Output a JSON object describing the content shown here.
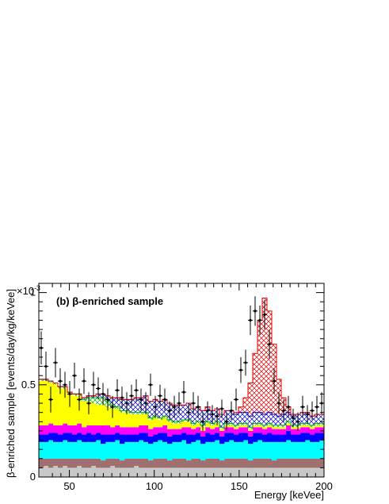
{
  "chart_data": {
    "type": "histogram",
    "panel_label": "(b) β-enriched sample",
    "xlabel": "Energy [keVee]",
    "ylabel": "β-enriched sample [events/day/kg/keVee]",
    "y_multiplier": "×10",
    "y_multiplier_exp": "-3",
    "xlim": [
      32,
      200
    ],
    "ylim": [
      0,
      1.05
    ],
    "x_ticks": [
      50,
      100,
      150,
      200
    ],
    "y_ticks": [
      0,
      0.5,
      1
    ],
    "y_tick_labels": [
      "0",
      "0.5",
      "1"
    ],
    "bins": [
      32.0,
      34.8,
      37.6,
      40.4,
      43.2,
      46.0,
      48.8,
      51.6,
      54.4,
      57.2,
      60.0,
      62.8,
      65.6,
      68.4,
      71.2,
      74.0,
      76.8,
      79.6,
      82.4,
      85.2,
      88.0,
      90.8,
      93.6,
      96.4,
      99.2,
      102.0,
      104.8,
      107.6,
      110.4,
      113.2,
      116.0,
      118.8,
      121.6,
      124.4,
      127.2,
      130.0,
      132.8,
      135.6,
      138.4,
      141.2,
      144.0,
      146.8,
      149.6,
      152.4,
      155.2,
      158.0,
      160.8,
      163.6,
      166.4,
      169.2,
      172.0,
      174.8,
      177.6,
      180.4,
      183.2,
      186.0,
      188.8,
      191.6,
      194.4,
      197.2,
      200.0
    ],
    "stack": [
      {
        "color": "#c8c8c8",
        "values": [
          0.05,
          0.06,
          0.05,
          0.06,
          0.05,
          0.06,
          0.05,
          0.05,
          0.06,
          0.05,
          0.05,
          0.06,
          0.05,
          0.05,
          0.05,
          0.06,
          0.05,
          0.05,
          0.05,
          0.05,
          0.06,
          0.05,
          0.05,
          0.05,
          0.05,
          0.05,
          0.05,
          0.05,
          0.05,
          0.05,
          0.05,
          0.05,
          0.05,
          0.05,
          0.05,
          0.05,
          0.05,
          0.05,
          0.05,
          0.05,
          0.05,
          0.05,
          0.05,
          0.05,
          0.05,
          0.05,
          0.05,
          0.05,
          0.05,
          0.05,
          0.05,
          0.05,
          0.05,
          0.05,
          0.05,
          0.05,
          0.05,
          0.05,
          0.05,
          0.05
        ]
      },
      {
        "color": "#a07070",
        "values": [
          0.05,
          0.04,
          0.05,
          0.04,
          0.05,
          0.04,
          0.05,
          0.05,
          0.04,
          0.05,
          0.05,
          0.04,
          0.05,
          0.04,
          0.05,
          0.04,
          0.05,
          0.04,
          0.05,
          0.05,
          0.04,
          0.05,
          0.05,
          0.04,
          0.05,
          0.05,
          0.05,
          0.04,
          0.05,
          0.05,
          0.05,
          0.04,
          0.05,
          0.05,
          0.04,
          0.05,
          0.05,
          0.05,
          0.04,
          0.05,
          0.05,
          0.05,
          0.05,
          0.05,
          0.04,
          0.05,
          0.05,
          0.05,
          0.05,
          0.04,
          0.05,
          0.05,
          0.05,
          0.05,
          0.05,
          0.05,
          0.05,
          0.05,
          0.05,
          0.05
        ]
      },
      {
        "color": "#00ffff",
        "values": [
          0.09,
          0.09,
          0.1,
          0.09,
          0.09,
          0.1,
          0.09,
          0.09,
          0.1,
          0.09,
          0.09,
          0.09,
          0.1,
          0.09,
          0.09,
          0.09,
          0.1,
          0.09,
          0.09,
          0.09,
          0.09,
          0.1,
          0.09,
          0.09,
          0.09,
          0.1,
          0.09,
          0.09,
          0.09,
          0.09,
          0.1,
          0.09,
          0.09,
          0.1,
          0.09,
          0.09,
          0.09,
          0.1,
          0.09,
          0.09,
          0.1,
          0.09,
          0.09,
          0.1,
          0.09,
          0.09,
          0.1,
          0.09,
          0.09,
          0.1,
          0.09,
          0.09,
          0.1,
          0.09,
          0.09,
          0.09,
          0.1,
          0.09,
          0.09,
          0.1
        ]
      },
      {
        "color": "#0000ff",
        "values": [
          0.04,
          0.04,
          0.04,
          0.05,
          0.04,
          0.04,
          0.05,
          0.04,
          0.04,
          0.04,
          0.05,
          0.04,
          0.04,
          0.05,
          0.04,
          0.04,
          0.04,
          0.05,
          0.04,
          0.04,
          0.04,
          0.04,
          0.05,
          0.04,
          0.04,
          0.04,
          0.05,
          0.04,
          0.04,
          0.04,
          0.04,
          0.05,
          0.04,
          0.04,
          0.04,
          0.05,
          0.04,
          0.04,
          0.04,
          0.05,
          0.04,
          0.04,
          0.05,
          0.04,
          0.04,
          0.05,
          0.04,
          0.04,
          0.05,
          0.04,
          0.04,
          0.04,
          0.05,
          0.04,
          0.04,
          0.05,
          0.04,
          0.04,
          0.05,
          0.04
        ]
      },
      {
        "color": "#ff00ff",
        "values": [
          0.05,
          0.05,
          0.05,
          0.04,
          0.05,
          0.05,
          0.04,
          0.05,
          0.05,
          0.04,
          0.04,
          0.05,
          0.04,
          0.05,
          0.05,
          0.04,
          0.04,
          0.04,
          0.04,
          0.04,
          0.04,
          0.04,
          0.04,
          0.04,
          0.04,
          0.03,
          0.04,
          0.04,
          0.03,
          0.03,
          0.03,
          0.04,
          0.03,
          0.03,
          0.03,
          0.03,
          0.03,
          0.03,
          0.03,
          0.03,
          0.03,
          0.03,
          0.03,
          0.03,
          0.03,
          0.03,
          0.03,
          0.03,
          0.03,
          0.03,
          0.03,
          0.03,
          0.03,
          0.03,
          0.03,
          0.03,
          0.03,
          0.03,
          0.03,
          0.03
        ]
      },
      {
        "color": "#ffff00",
        "values": [
          0.24,
          0.24,
          0.22,
          0.22,
          0.2,
          0.19,
          0.17,
          0.16,
          0.15,
          0.14,
          0.13,
          0.12,
          0.11,
          0.11,
          0.1,
          0.1,
          0.09,
          0.08,
          0.08,
          0.07,
          0.07,
          0.06,
          0.06,
          0.05,
          0.05,
          0.04,
          0.04,
          0.04,
          0.03,
          0.03,
          0.03,
          0.03,
          0.02,
          0.02,
          0.02,
          0.02,
          0.02,
          0.02,
          0.01,
          0.01,
          0.01,
          0.01,
          0.01,
          0.01,
          0.01,
          0.01,
          0.01,
          0.01,
          0.01,
          0.01,
          0.01,
          0.01,
          0.01,
          0.01,
          0.01,
          0.01,
          0.01,
          0.01,
          0.01,
          0.01
        ]
      },
      {
        "color": "#ffffff",
        "hatch": "#00b000",
        "values": [
          0.01,
          0.01,
          0.01,
          0.01,
          0.01,
          0.01,
          0.01,
          0.01,
          0.01,
          0.01,
          0.02,
          0.03,
          0.04,
          0.04,
          0.03,
          0.02,
          0.01,
          0.01,
          0.01,
          0.01,
          0.01,
          0.01,
          0.01,
          0.01,
          0.01,
          0.01,
          0.01,
          0.01,
          0.01,
          0.01,
          0.01,
          0.01,
          0.01,
          0.01,
          0.01,
          0.01,
          0.01,
          0.01,
          0.01,
          0.01,
          0.01,
          0.01,
          0.01,
          0.01,
          0.01,
          0.01,
          0.01,
          0.01,
          0.01,
          0.01,
          0.01,
          0.01,
          0.01,
          0.01,
          0.01,
          0.01,
          0.01,
          0.01,
          0.01,
          0.01
        ]
      },
      {
        "color": "#ffffff",
        "hatch": "#0000c8",
        "values": [
          0.0,
          0.0,
          0.0,
          0.0,
          0.0,
          0.0,
          0.0,
          0.0,
          0.0,
          0.01,
          0.01,
          0.01,
          0.02,
          0.02,
          0.03,
          0.04,
          0.05,
          0.06,
          0.06,
          0.07,
          0.08,
          0.08,
          0.09,
          0.09,
          0.09,
          0.09,
          0.09,
          0.09,
          0.09,
          0.09,
          0.08,
          0.09,
          0.08,
          0.08,
          0.08,
          0.08,
          0.07,
          0.07,
          0.07,
          0.07,
          0.07,
          0.06,
          0.06,
          0.06,
          0.06,
          0.06,
          0.06,
          0.06,
          0.06,
          0.06,
          0.05,
          0.06,
          0.05,
          0.05,
          0.06,
          0.06,
          0.06,
          0.05,
          0.05,
          0.05
        ]
      },
      {
        "color": "#ffffff",
        "hatch": "#e00000",
        "values": [
          0.0,
          0.0,
          0.0,
          0.0,
          0.0,
          0.0,
          0.0,
          0.0,
          0.0,
          0.0,
          0.0,
          0.0,
          0.0,
          0.0,
          0.0,
          0.0,
          0.0,
          0.0,
          0.0,
          0.0,
          0.0,
          0.0,
          0.0,
          0.0,
          0.0,
          0.0,
          0.0,
          0.0,
          0.0,
          0.0,
          0.0,
          0.0,
          0.0,
          0.0,
          0.0,
          0.0,
          0.0,
          0.0,
          0.0,
          0.0,
          0.0,
          0.01,
          0.03,
          0.08,
          0.18,
          0.32,
          0.5,
          0.63,
          0.55,
          0.38,
          0.2,
          0.09,
          0.03,
          0.01,
          0.0,
          0.0,
          0.0,
          0.0,
          0.0,
          0.0
        ]
      }
    ],
    "data_points": {
      "x": [
        33.4,
        36.2,
        39.0,
        41.8,
        44.6,
        47.4,
        50.2,
        53.0,
        55.8,
        58.6,
        61.4,
        64.2,
        67.0,
        69.8,
        72.6,
        75.4,
        78.2,
        81.0,
        83.8,
        86.6,
        89.4,
        92.2,
        95.0,
        97.8,
        100.6,
        103.4,
        106.2,
        109.0,
        111.8,
        114.6,
        117.4,
        120.2,
        123.0,
        125.8,
        128.6,
        131.4,
        134.2,
        137.0,
        139.8,
        142.6,
        145.4,
        148.2,
        151.0,
        153.8,
        156.6,
        159.4,
        162.2,
        165.0,
        167.8,
        170.6,
        173.4,
        176.2,
        179.0,
        181.8,
        184.6,
        187.4,
        190.2,
        193.0,
        195.8,
        198.6
      ],
      "y": [
        0.7,
        0.6,
        0.42,
        0.62,
        0.52,
        0.5,
        0.45,
        0.55,
        0.42,
        0.52,
        0.4,
        0.5,
        0.48,
        0.45,
        0.42,
        0.38,
        0.47,
        0.43,
        0.4,
        0.44,
        0.47,
        0.42,
        0.4,
        0.5,
        0.38,
        0.44,
        0.42,
        0.36,
        0.38,
        0.4,
        0.46,
        0.35,
        0.4,
        0.38,
        0.3,
        0.36,
        0.34,
        0.33,
        0.37,
        0.3,
        0.36,
        0.42,
        0.58,
        0.62,
        0.85,
        0.9,
        0.85,
        0.88,
        0.72,
        0.52,
        0.4,
        0.36,
        0.38,
        0.32,
        0.3,
        0.38,
        0.34,
        0.36,
        0.38,
        0.4
      ],
      "err": [
        0.09,
        0.08,
        0.07,
        0.08,
        0.07,
        0.07,
        0.07,
        0.07,
        0.06,
        0.07,
        0.06,
        0.07,
        0.06,
        0.06,
        0.06,
        0.06,
        0.06,
        0.06,
        0.06,
        0.06,
        0.06,
        0.06,
        0.06,
        0.06,
        0.06,
        0.06,
        0.06,
        0.05,
        0.06,
        0.06,
        0.06,
        0.05,
        0.06,
        0.06,
        0.05,
        0.05,
        0.05,
        0.05,
        0.05,
        0.05,
        0.05,
        0.06,
        0.07,
        0.07,
        0.08,
        0.08,
        0.08,
        0.08,
        0.08,
        0.07,
        0.06,
        0.06,
        0.06,
        0.05,
        0.05,
        0.06,
        0.05,
        0.05,
        0.06,
        0.06
      ]
    },
    "legend": "none",
    "grid": false
  }
}
